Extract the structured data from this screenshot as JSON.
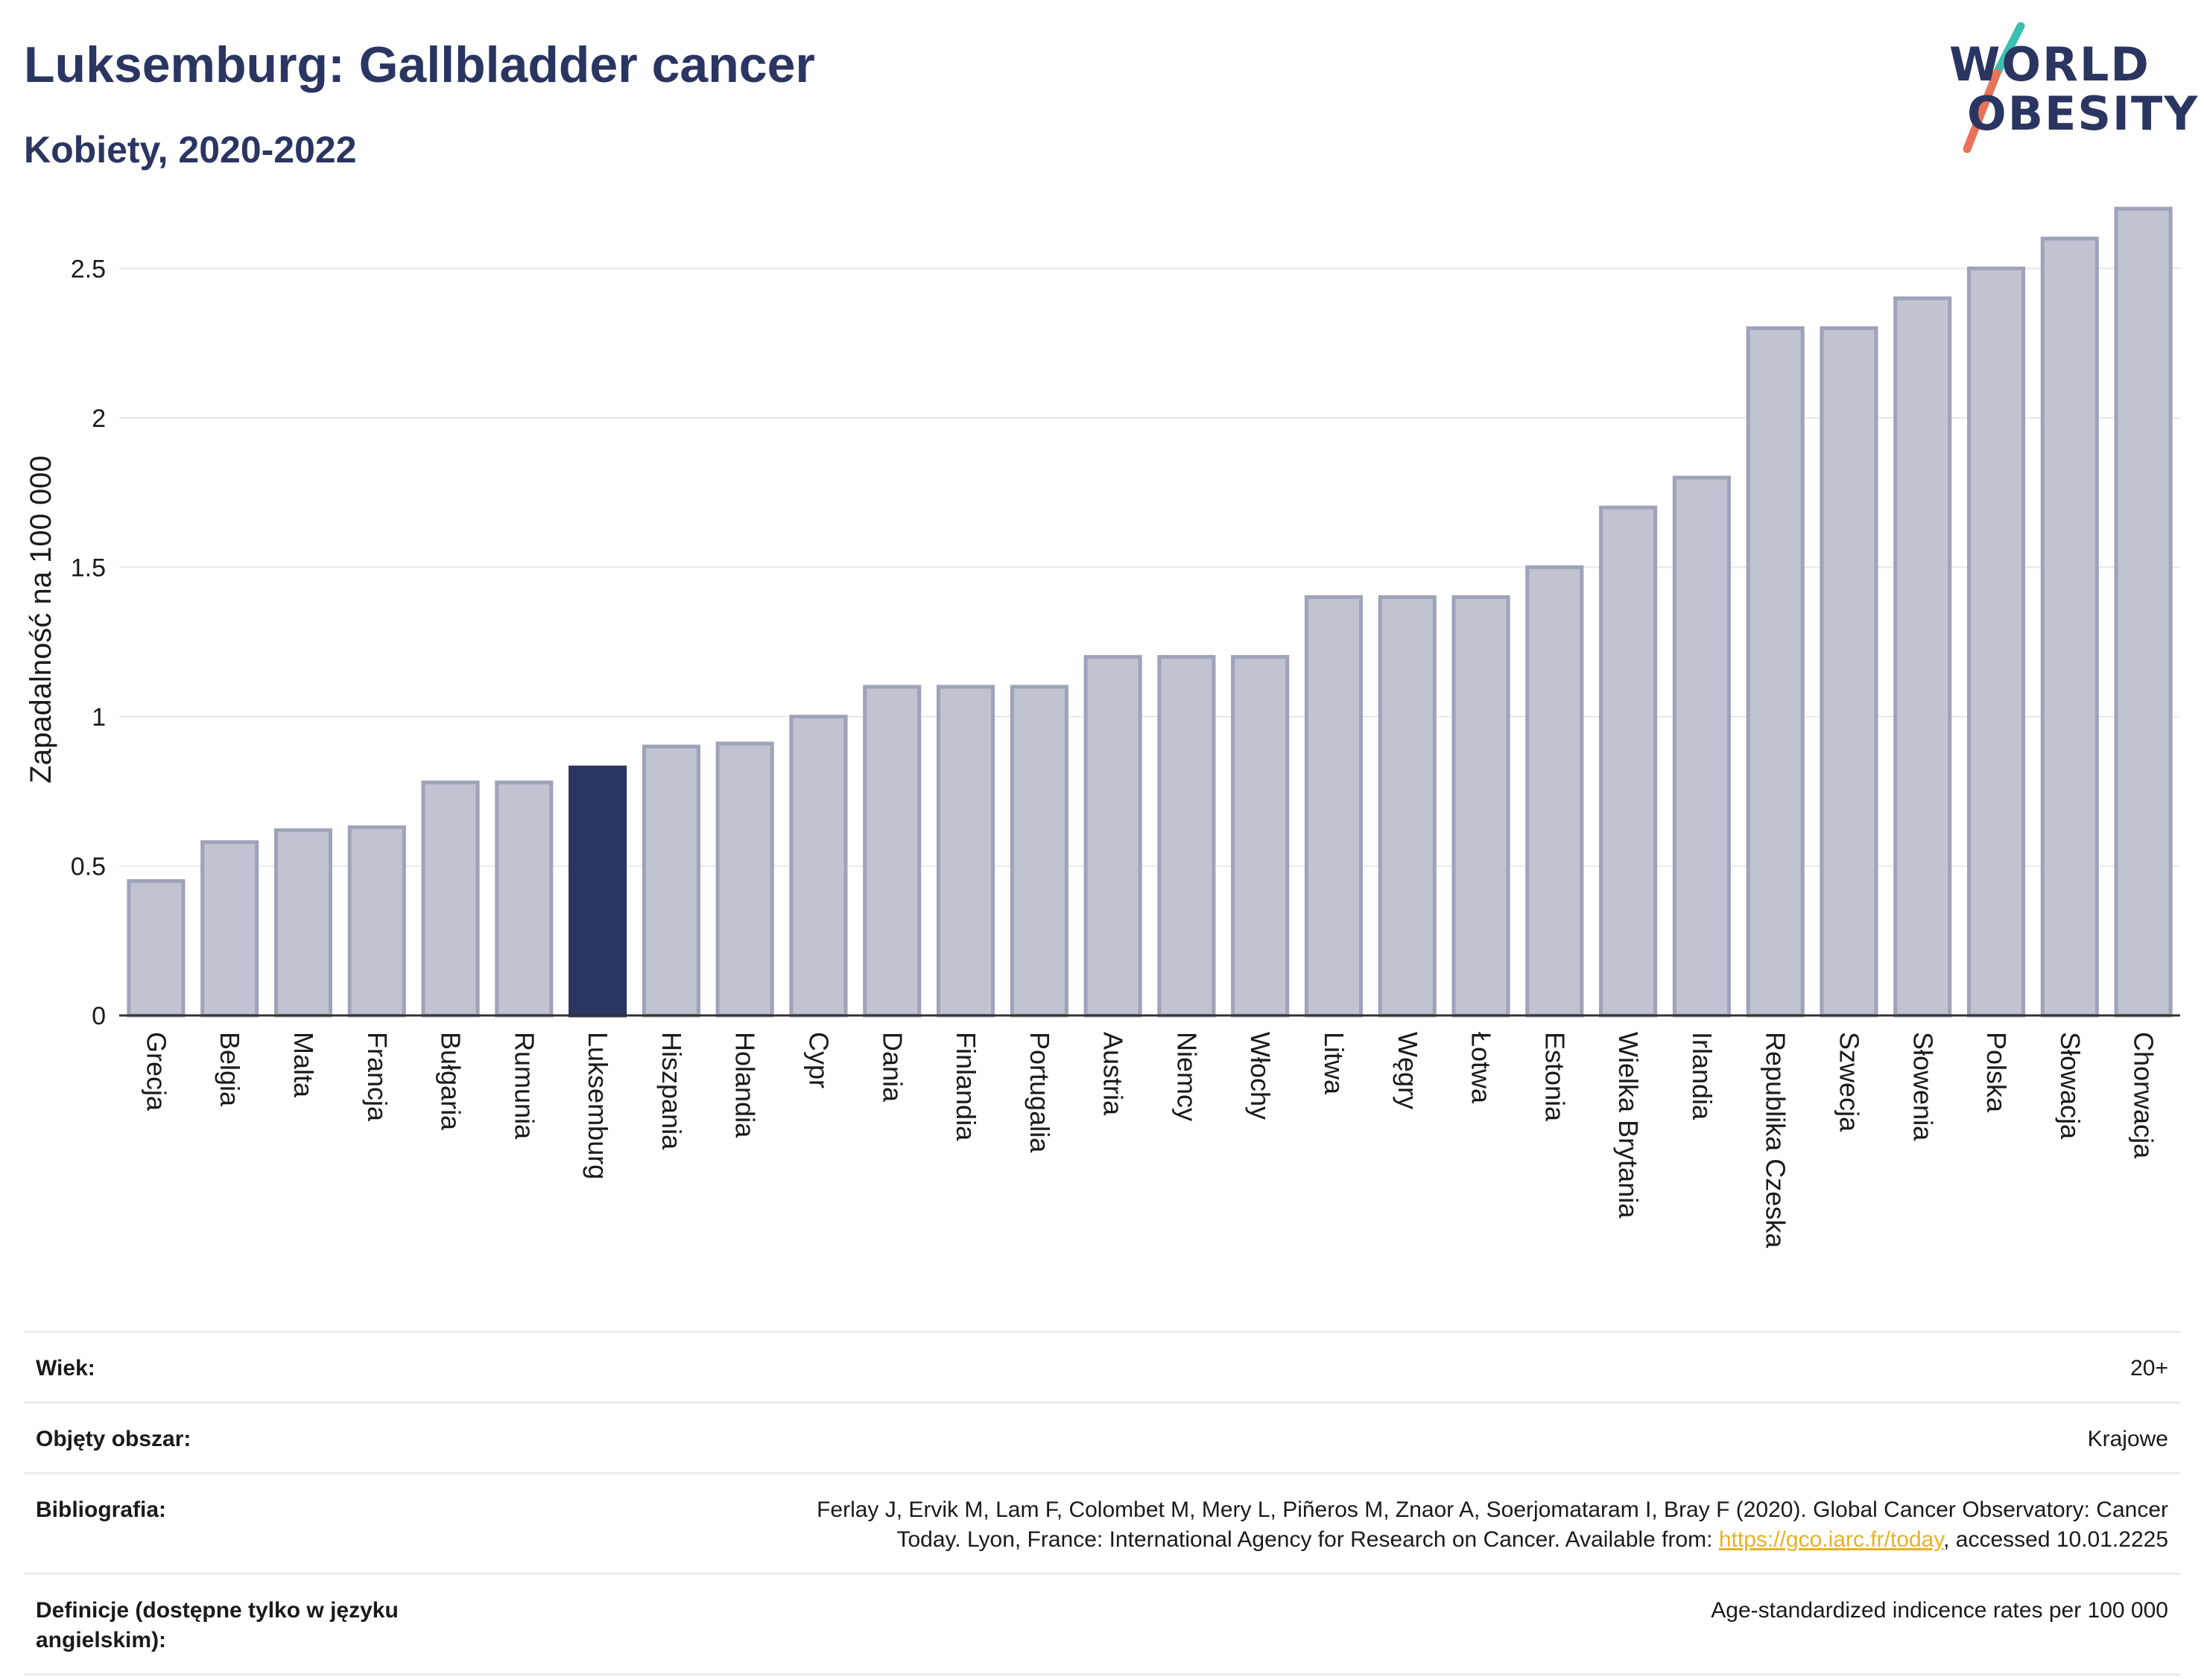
{
  "header": {
    "title": "Luksemburg: Gallbladder cancer",
    "subtitle": "Kobiety, 2020-2022"
  },
  "logo": {
    "line1": "WORLD",
    "line2": "OBESITY"
  },
  "colors": {
    "bar": "#c0c3d0",
    "bar_stroke": "#9ea3ba",
    "highlight": "#2a3561",
    "grid": "#e6e8ee",
    "axis": "#333333",
    "text": "#1a1a1a",
    "logo_teal": "#3cbfae",
    "logo_coral": "#e8735a"
  },
  "chart_data": {
    "type": "bar",
    "ylabel": "Zapadalność na 100 000",
    "ylim": [
      0,
      2.75
    ],
    "yticks": [
      0,
      0.5,
      1,
      1.5,
      2,
      2.5
    ],
    "ytick_labels": [
      "0",
      "0.5",
      "1",
      "1.5",
      "2",
      "2.5"
    ],
    "grid": true,
    "highlight": "Luksemburg",
    "categories": [
      "Grecja",
      "Belgia",
      "Malta",
      "Francja",
      "Bułgaria",
      "Rumunia",
      "Luksemburg",
      "Hiszpania",
      "Holandia",
      "Cypr",
      "Dania",
      "Finlandia",
      "Portugalia",
      "Austria",
      "Niemcy",
      "Włochy",
      "Litwa",
      "Węgry",
      "Łotwa",
      "Estonia",
      "Wielka Brytania",
      "Irlandia",
      "Republika Czeska",
      "Szwecja",
      "Słowenia",
      "Polska",
      "Słowacja",
      "Chorwacja"
    ],
    "values": [
      0.45,
      0.58,
      0.62,
      0.63,
      0.78,
      0.78,
      0.83,
      0.9,
      0.91,
      1.0,
      1.1,
      1.1,
      1.1,
      1.2,
      1.2,
      1.2,
      1.4,
      1.4,
      1.4,
      1.5,
      1.7,
      1.8,
      2.3,
      2.3,
      2.4,
      2.5,
      2.6,
      2.7
    ]
  },
  "info": [
    {
      "key": "Wiek:",
      "value": "20+"
    },
    {
      "key": "Objęty obszar:",
      "value": "Krajowe"
    },
    {
      "key": "Bibliografia:",
      "value_line1": "Ferlay J, Ervik M, Lam F, Colombet M, Mery L, Piñeros M, Znaor A, Soerjomataram I, Bray F (2020). Global Cancer Observatory: Cancer",
      "value_line2_pre": "Today. Lyon, France: International Agency for Research on Cancer. Available from: ",
      "link": "https://gco.iarc.fr/today",
      "value_line2_post": ", accessed 10.01.2225"
    },
    {
      "key": "Definicje (dostępne tylko w języku angielskim):",
      "value": "Age-standardized indicence rates per 100 000"
    }
  ]
}
